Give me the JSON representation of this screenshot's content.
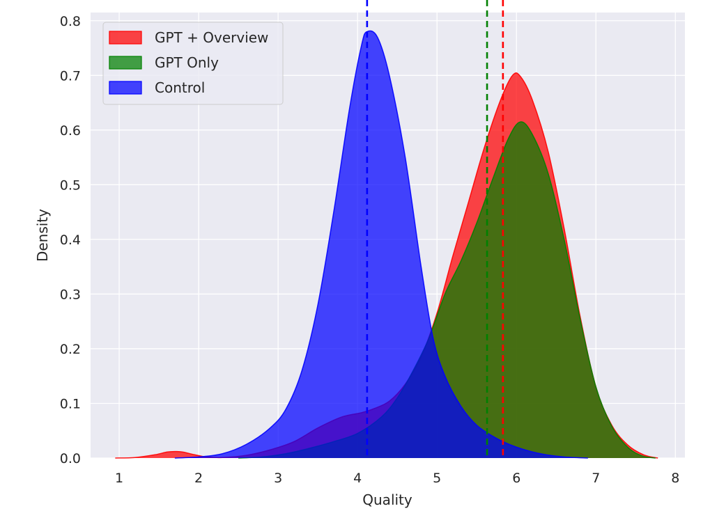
{
  "chart_data": {
    "type": "area",
    "title": "",
    "xlabel": "Quality",
    "ylabel": "Density",
    "xlim": [
      0.64,
      8.12
    ],
    "ylim": [
      0,
      0.815
    ],
    "x_ticks": [
      "1",
      "2",
      "3",
      "4",
      "5",
      "6",
      "7",
      "8"
    ],
    "y_ticks": [
      "0.0",
      "0.1",
      "0.2",
      "0.3",
      "0.4",
      "0.5",
      "0.6",
      "0.7",
      "0.8"
    ],
    "grid": true,
    "legend_position": "top-left",
    "series": [
      {
        "name": "GPT + Overview",
        "color": "#ff0000",
        "mean": 5.83,
        "points": [
          [
            0.95,
            0
          ],
          [
            1.2,
            0.001
          ],
          [
            1.45,
            0.006
          ],
          [
            1.6,
            0.011
          ],
          [
            1.7,
            0.012
          ],
          [
            1.8,
            0.011
          ],
          [
            1.95,
            0.006
          ],
          [
            2.1,
            0.002
          ],
          [
            2.3,
            0.001
          ],
          [
            2.6,
            0.005
          ],
          [
            2.9,
            0.015
          ],
          [
            3.2,
            0.03
          ],
          [
            3.5,
            0.055
          ],
          [
            3.8,
            0.075
          ],
          [
            4.05,
            0.083
          ],
          [
            4.2,
            0.09
          ],
          [
            4.4,
            0.104
          ],
          [
            4.6,
            0.135
          ],
          [
            4.8,
            0.185
          ],
          [
            5.0,
            0.265
          ],
          [
            5.2,
            0.37
          ],
          [
            5.4,
            0.47
          ],
          [
            5.6,
            0.57
          ],
          [
            5.8,
            0.655
          ],
          [
            5.95,
            0.7
          ],
          [
            6.05,
            0.698
          ],
          [
            6.2,
            0.655
          ],
          [
            6.4,
            0.56
          ],
          [
            6.6,
            0.42
          ],
          [
            6.8,
            0.26
          ],
          [
            7.0,
            0.13
          ],
          [
            7.2,
            0.06
          ],
          [
            7.4,
            0.024
          ],
          [
            7.6,
            0.006
          ],
          [
            7.78,
            0
          ]
        ]
      },
      {
        "name": "GPT Only",
        "color": "#008000",
        "mean": 5.63,
        "points": [
          [
            2.5,
            0
          ],
          [
            2.8,
            0.002
          ],
          [
            3.1,
            0.008
          ],
          [
            3.4,
            0.018
          ],
          [
            3.7,
            0.03
          ],
          [
            4.0,
            0.045
          ],
          [
            4.3,
            0.075
          ],
          [
            4.5,
            0.11
          ],
          [
            4.7,
            0.16
          ],
          [
            4.9,
            0.22
          ],
          [
            5.1,
            0.3
          ],
          [
            5.3,
            0.36
          ],
          [
            5.5,
            0.43
          ],
          [
            5.7,
            0.51
          ],
          [
            5.9,
            0.585
          ],
          [
            6.05,
            0.615
          ],
          [
            6.2,
            0.592
          ],
          [
            6.4,
            0.52
          ],
          [
            6.6,
            0.4
          ],
          [
            6.8,
            0.255
          ],
          [
            7.0,
            0.13
          ],
          [
            7.2,
            0.058
          ],
          [
            7.4,
            0.02
          ],
          [
            7.58,
            0.004
          ],
          [
            7.75,
            0
          ]
        ]
      },
      {
        "name": "Control",
        "color": "#0000ff",
        "mean": 4.12,
        "points": [
          [
            1.7,
            0
          ],
          [
            2.0,
            0.002
          ],
          [
            2.3,
            0.008
          ],
          [
            2.6,
            0.025
          ],
          [
            2.9,
            0.055
          ],
          [
            3.1,
            0.09
          ],
          [
            3.3,
            0.16
          ],
          [
            3.5,
            0.28
          ],
          [
            3.7,
            0.45
          ],
          [
            3.9,
            0.64
          ],
          [
            4.05,
            0.755
          ],
          [
            4.12,
            0.78
          ],
          [
            4.25,
            0.77
          ],
          [
            4.4,
            0.7
          ],
          [
            4.6,
            0.55
          ],
          [
            4.8,
            0.35
          ],
          [
            4.95,
            0.22
          ],
          [
            5.1,
            0.15
          ],
          [
            5.3,
            0.095
          ],
          [
            5.5,
            0.06
          ],
          [
            5.75,
            0.036
          ],
          [
            6.0,
            0.02
          ],
          [
            6.3,
            0.008
          ],
          [
            6.6,
            0.002
          ],
          [
            6.9,
            0
          ]
        ]
      }
    ]
  }
}
